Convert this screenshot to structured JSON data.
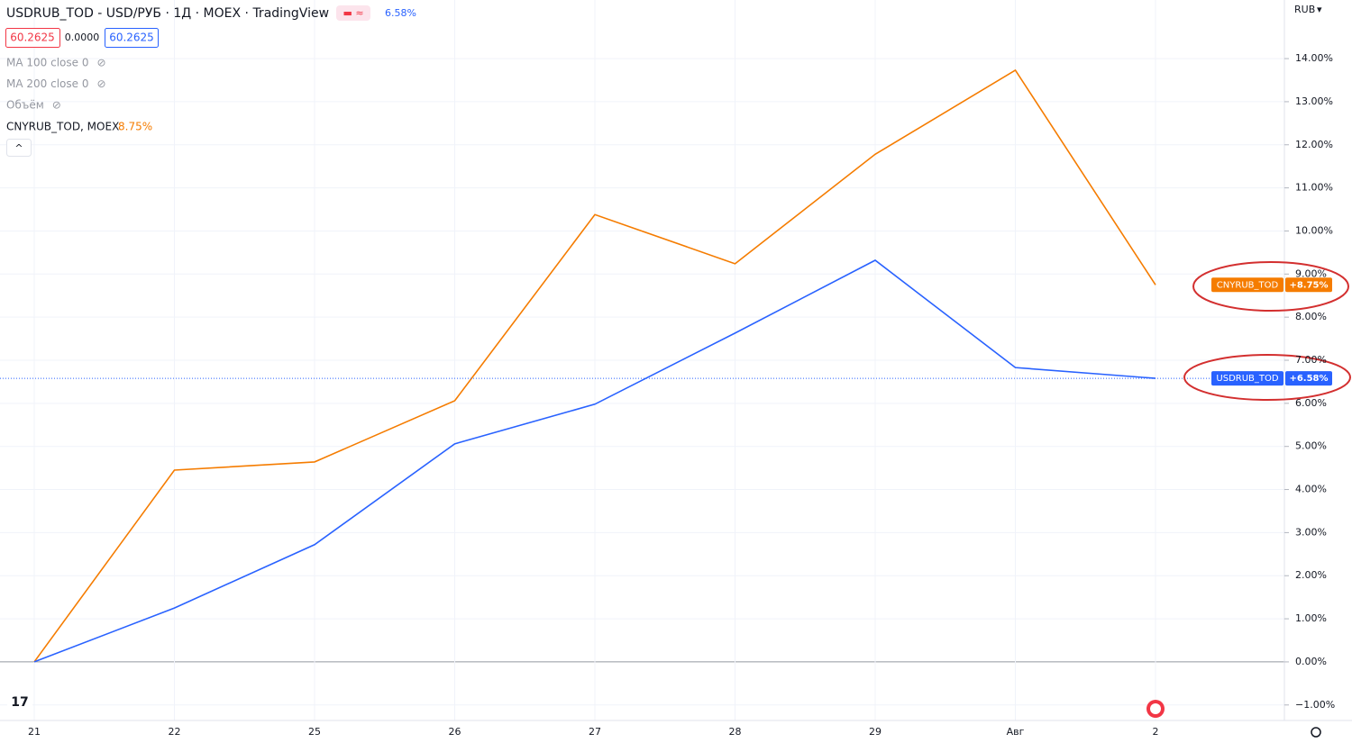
{
  "header": {
    "title": "USDRUB_TOD - USD/РУБ · 1Д · MOEX · TradingView",
    "change": "6.58%",
    "bid": "60.2625",
    "spread": "0.0000",
    "ask": "60.2625",
    "indicators": [
      "MA 100 close 0",
      "MA 200 close 0",
      "Объём"
    ],
    "compare_name": "CNYRUB_TOD, MOEX",
    "compare_change": "8.75%",
    "currency": "RUB"
  },
  "chart_data": {
    "type": "line",
    "categories": [
      "21",
      "22",
      "25",
      "26",
      "27",
      "28",
      "29",
      "Авг",
      "2"
    ],
    "series": [
      {
        "name": "CNYRUB_TOD",
        "color": "#f57c00",
        "values": [
          0,
          4.45,
          4.64,
          6.06,
          10.38,
          9.24,
          11.78,
          13.73,
          8.75
        ],
        "value_labels": [
          null,
          null,
          null,
          null,
          null,
          null,
          null,
          null,
          "+8.75%"
        ]
      },
      {
        "name": "USDRUB_TOD",
        "color": "#2962ff",
        "values": [
          0,
          1.25,
          2.72,
          5.06,
          5.98,
          7.63,
          9.32,
          6.83,
          6.58
        ],
        "value_labels": [
          null,
          null,
          null,
          null,
          null,
          null,
          null,
          null,
          "+6.58%"
        ]
      }
    ],
    "ylim": [
      -1.36,
      15.36
    ],
    "yticks": [
      {
        "value": -1,
        "label": "−1.00%"
      },
      {
        "value": 0,
        "label": "0.00%"
      },
      {
        "value": 1,
        "label": "1.00%"
      },
      {
        "value": 2,
        "label": "2.00%"
      },
      {
        "value": 3,
        "label": "3.00%"
      },
      {
        "value": 4,
        "label": "4.00%"
      },
      {
        "value": 5,
        "label": "5.00%"
      },
      {
        "value": 6,
        "label": "6.00%"
      },
      {
        "value": 7,
        "label": "7.00%"
      },
      {
        "value": 8,
        "label": "8.00%"
      },
      {
        "value": 9,
        "label": "9.00%"
      },
      {
        "value": 10,
        "label": "10.00%"
      },
      {
        "value": 11,
        "label": "11.00%"
      },
      {
        "value": 12,
        "label": "12.00%"
      },
      {
        "value": 13,
        "label": "13.00%"
      },
      {
        "value": 14,
        "label": "14.00%"
      }
    ],
    "grid": true
  }
}
